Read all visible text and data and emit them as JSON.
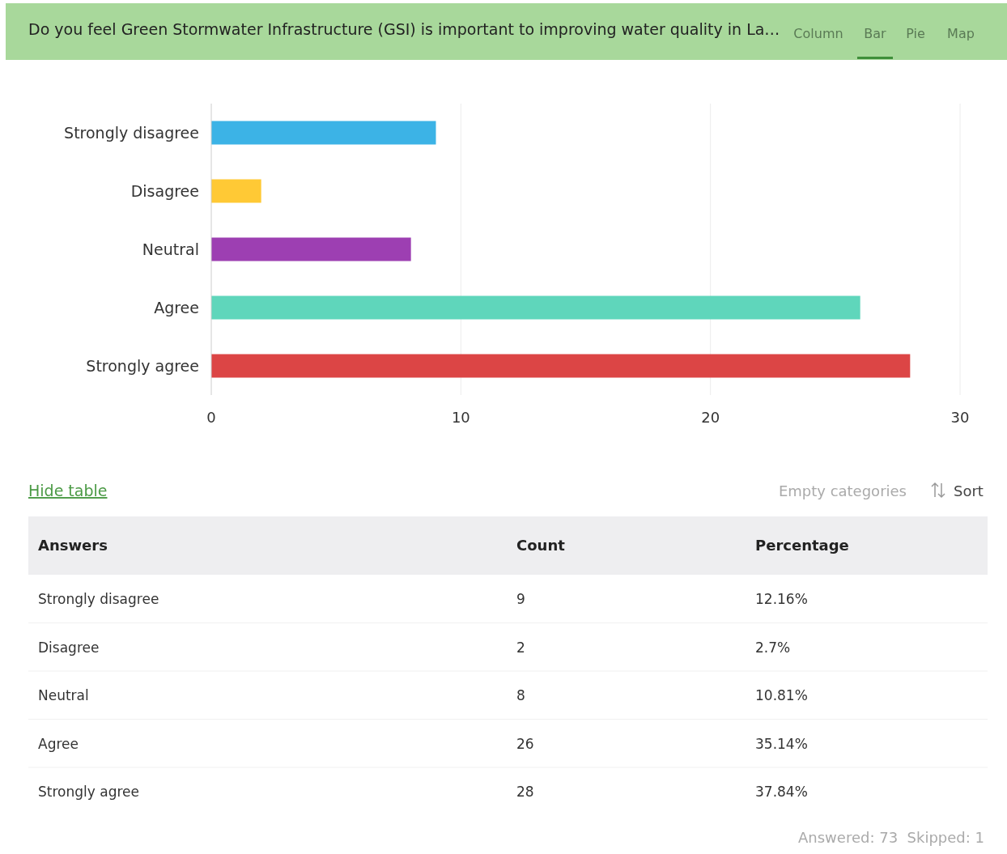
{
  "chart_data": {
    "type": "bar",
    "orientation": "horizontal",
    "title": "Do you feel Green Stormwater Infrastructure (GSI) is important to improving water quality in La…",
    "categories": [
      "Strongly disagree",
      "Disagree",
      "Neutral",
      "Agree",
      "Strongly agree"
    ],
    "values": [
      9,
      2,
      8,
      26,
      28
    ],
    "colors": [
      "#3cb3e6",
      "#ffc935",
      "#9d3fb2",
      "#5fd6bb",
      "#dc4545"
    ],
    "xlim": [
      0,
      30
    ],
    "xticks": [
      0,
      10,
      20,
      30
    ],
    "grid": "x",
    "annotations": [
      "Column",
      "Bar",
      "Pie",
      "Map",
      "Hide table",
      "Empty categories",
      "Sort",
      "Answers",
      "Count",
      "Percentage",
      "12.16%",
      "2.7%",
      "10.81%",
      "35.14%",
      "37.84%",
      "Answered: 73  Skipped: 1",
      "9",
      "2",
      "8",
      "26",
      "28"
    ]
  }
}
